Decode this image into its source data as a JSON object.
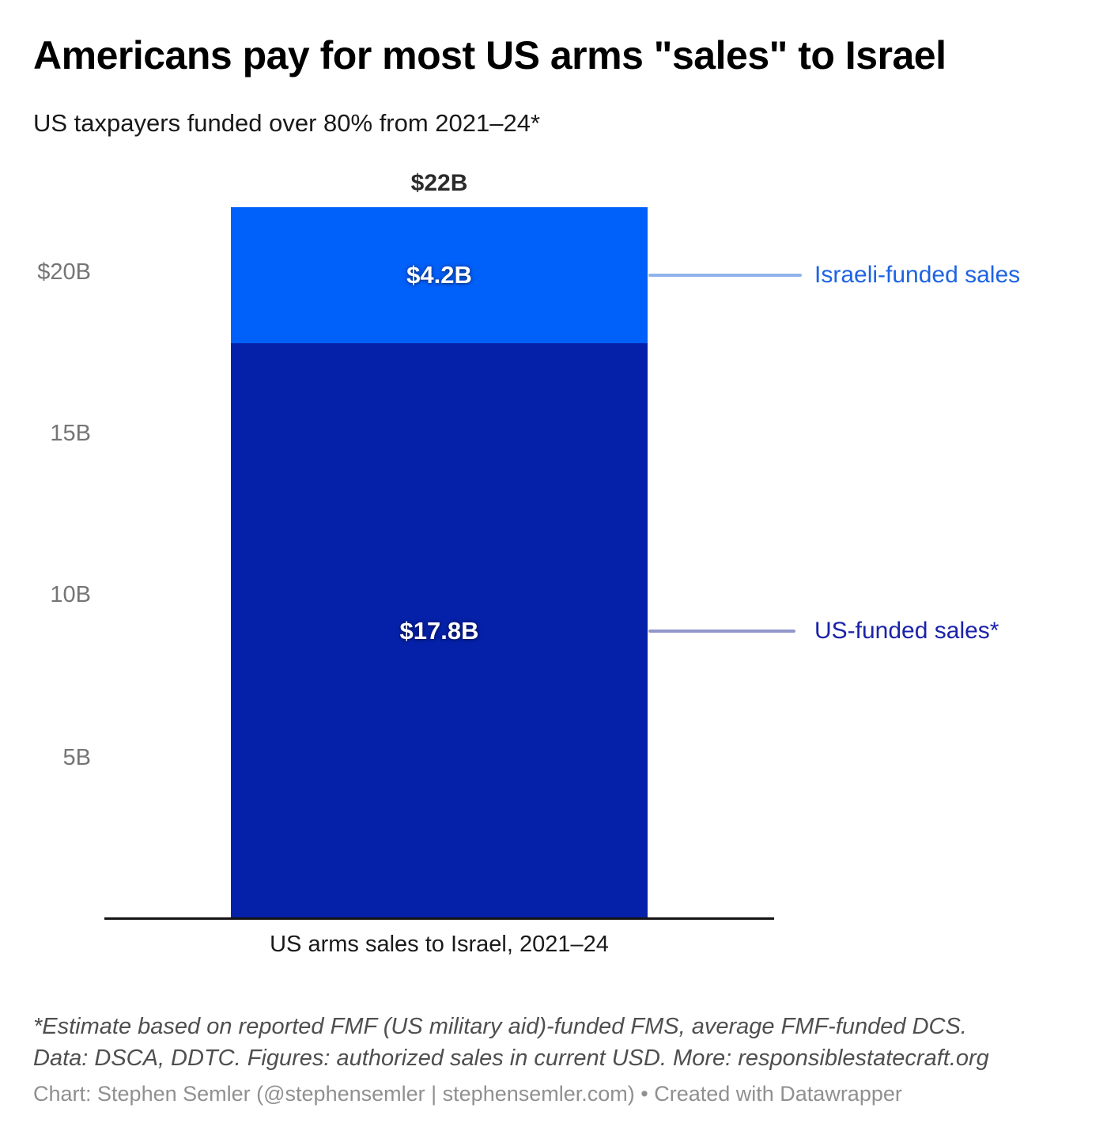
{
  "header": {
    "title": "Americans pay for most US arms \"sales\" to Israel",
    "subtitle": "US taxpayers funded over 80% from 2021–24*"
  },
  "chart_data": {
    "type": "bar",
    "stacked": true,
    "categories": [
      "US arms sales to Israel, 2021–24"
    ],
    "series": [
      {
        "name": "US-funded sales*",
        "values": [
          17.8
        ],
        "data_label": "$17.8B",
        "color": "#0521a9"
      },
      {
        "name": "Israeli-funded sales",
        "values": [
          4.2
        ],
        "data_label": "$4.2B",
        "color": "#0060fa"
      }
    ],
    "total": 22,
    "total_label": "$22B",
    "xlabel": "US arms sales to Israel, 2021–24",
    "ylabel": "",
    "unit": "billions of current USD",
    "ylim": [
      0,
      22
    ],
    "yticks": [
      {
        "value": 20,
        "label": "$20B"
      },
      {
        "value": 15,
        "label": "15B"
      },
      {
        "value": 10,
        "label": "10B"
      },
      {
        "value": 5,
        "label": "5B"
      }
    ],
    "grid": false,
    "legend_position": "right-side annotations with connector lines",
    "annotations": [
      {
        "text": "Israeli-funded sales",
        "text_color": "#1d64e3",
        "line_color": "#8fb4ec",
        "points_to": "Israeli-funded segment"
      },
      {
        "text": "US-funded sales*",
        "text_color": "#1b23a8",
        "line_color": "#9097cb",
        "points_to": "US-funded segment"
      }
    ]
  },
  "footer": {
    "footnote_line1": "*Estimate based on reported FMF (US military aid)-funded FMS, average FMF-funded DCS.",
    "footnote_line2": "Data: DSCA, DDTC. Figures: authorized sales in current USD. More: responsiblestatecraft.org",
    "credit": "Chart: Stephen Semler (@stephensemler | stephensemler.com) • Created with Datawrapper"
  }
}
